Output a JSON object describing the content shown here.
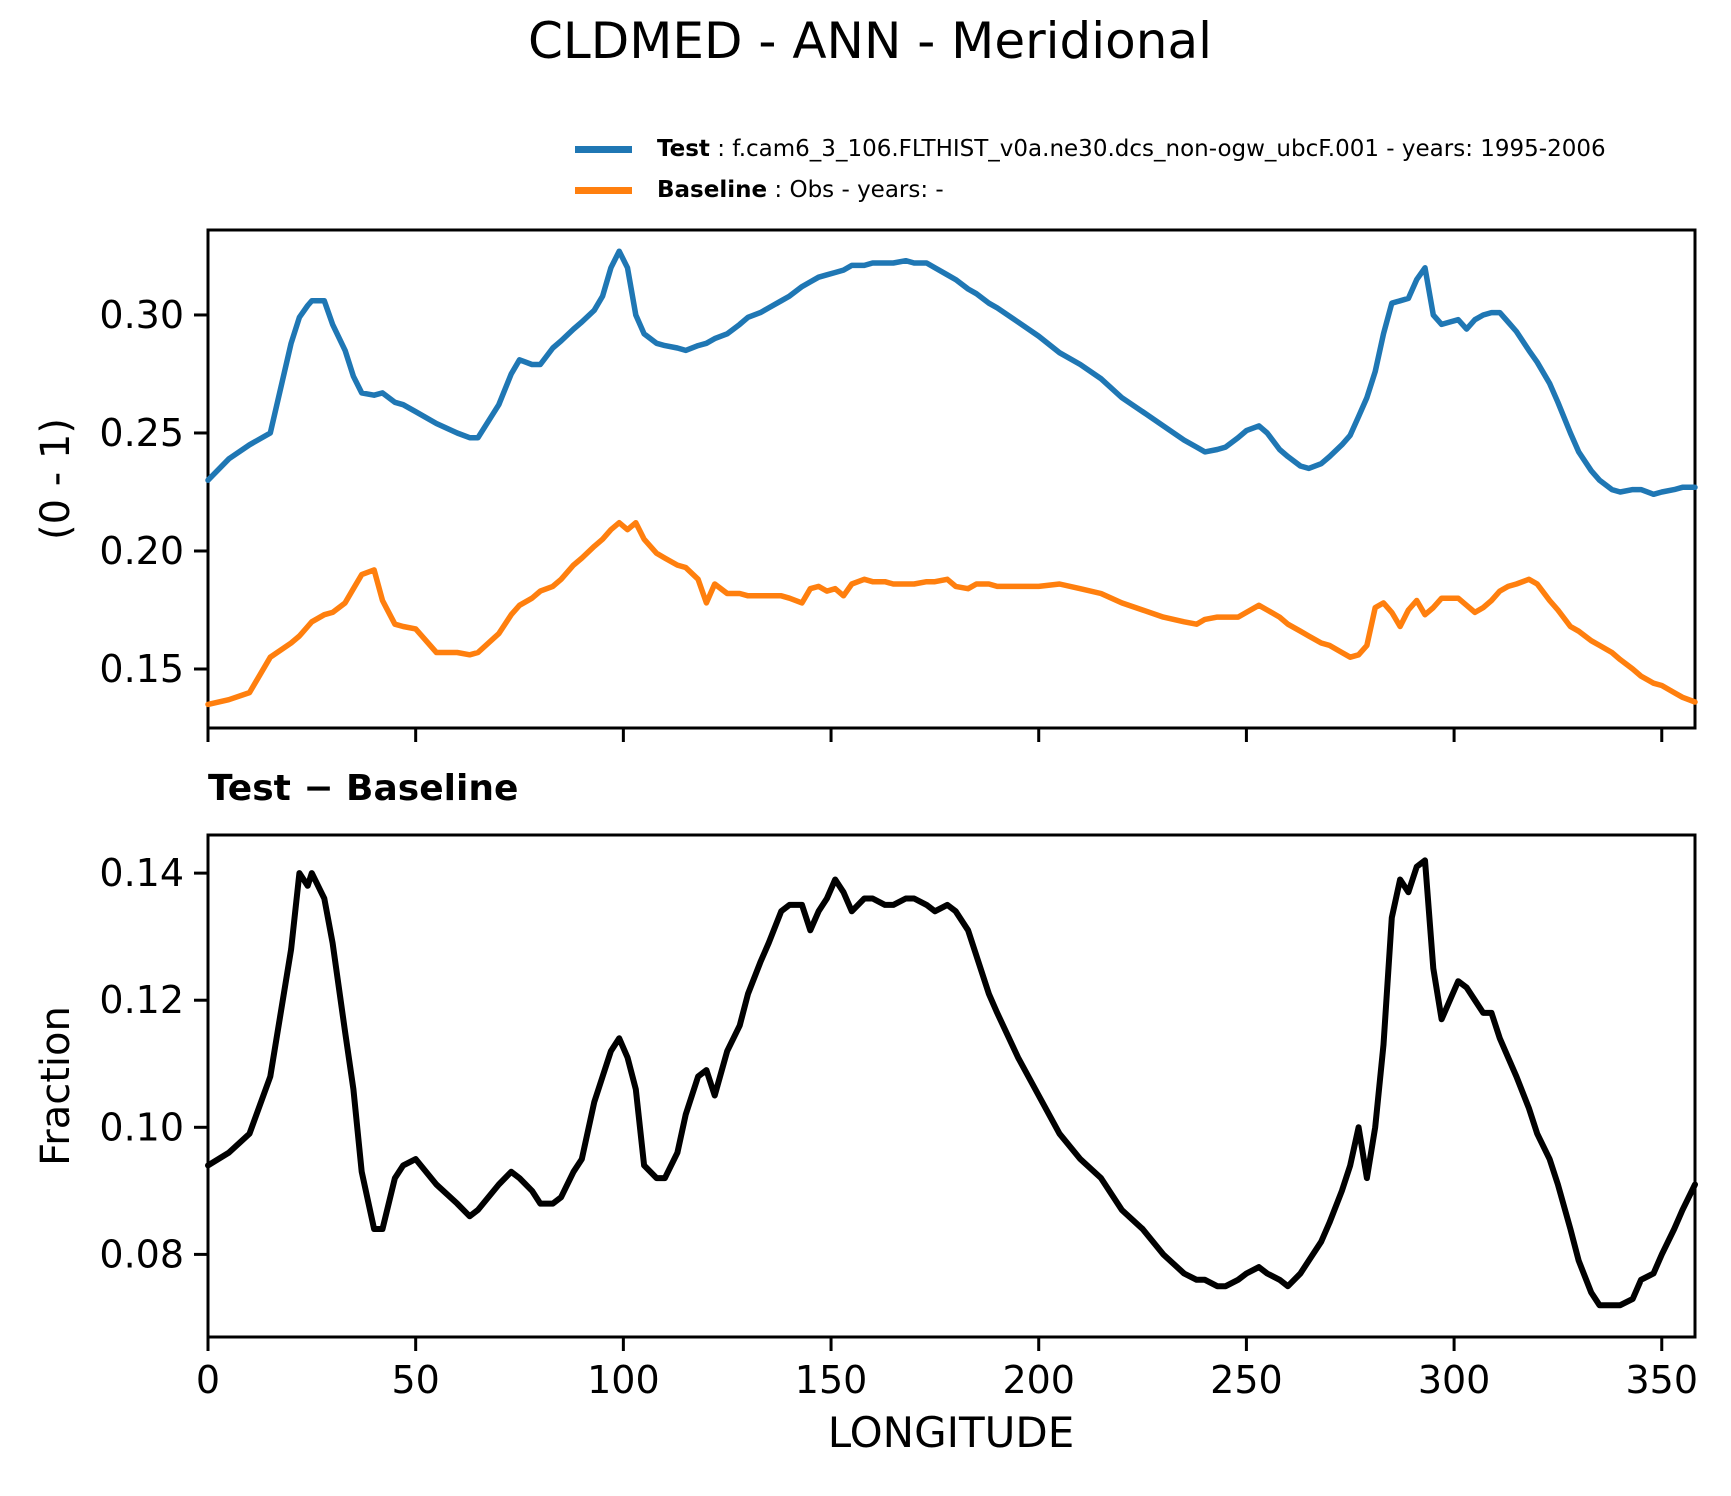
{
  "title": "CLDMED - ANN - Meridional",
  "legend": {
    "entries": [
      {
        "name": "Test",
        "rest": " : f.cam6_3_106.FLTHIST_v0a.ne30.dcs_non-ogw_ubcF.001 - years: 1995-2006",
        "color": "#1f77b4"
      },
      {
        "name": "Baseline",
        "rest": " : Obs - years: -",
        "color": "#ff7f0e"
      }
    ]
  },
  "chart_data": [
    {
      "type": "line",
      "panel": "top",
      "title": "",
      "ylabel": "(0 - 1)",
      "xlabel": "",
      "grid": false,
      "legend_position": "top",
      "xlim": [
        0,
        358
      ],
      "ylim": [
        0.125,
        0.336
      ],
      "ytick_values": [
        0.3,
        0.25,
        0.2,
        0.15
      ],
      "ytick_labels": [
        "0.30",
        "0.25",
        "0.20",
        "0.15"
      ],
      "xtick_values": [
        0,
        50,
        100,
        150,
        200,
        250,
        300,
        350
      ],
      "xtick_labels": null,
      "x": [
        0,
        5,
        10,
        15,
        20,
        22,
        24,
        25,
        28,
        30,
        33,
        35,
        37,
        40,
        42,
        45,
        47,
        50,
        55,
        60,
        63,
        65,
        70,
        73,
        75,
        78,
        80,
        83,
        85,
        88,
        90,
        93,
        95,
        97,
        99,
        101,
        103,
        105,
        108,
        110,
        113,
        115,
        118,
        120,
        122,
        125,
        128,
        130,
        133,
        135,
        138,
        140,
        143,
        145,
        147,
        149,
        151,
        153,
        155,
        158,
        160,
        163,
        165,
        168,
        170,
        173,
        175,
        178,
        180,
        183,
        185,
        188,
        190,
        195,
        200,
        205,
        210,
        215,
        220,
        225,
        230,
        235,
        238,
        240,
        243,
        245,
        248,
        250,
        253,
        255,
        258,
        260,
        263,
        265,
        268,
        270,
        273,
        275,
        277,
        279,
        281,
        283,
        285,
        287,
        289,
        291,
        293,
        295,
        297,
        299,
        301,
        303,
        305,
        307,
        309,
        311,
        313,
        315,
        318,
        320,
        323,
        325,
        328,
        330,
        333,
        335,
        338,
        340,
        343,
        345,
        348,
        350,
        353,
        355,
        358
      ],
      "series": [
        {
          "name": "Test",
          "color": "#1f77b4",
          "values": [
            0.23,
            0.239,
            0.245,
            0.25,
            0.288,
            0.299,
            0.304,
            0.306,
            0.306,
            0.296,
            0.285,
            0.274,
            0.267,
            0.266,
            0.267,
            0.263,
            0.262,
            0.259,
            0.254,
            0.25,
            0.248,
            0.248,
            0.262,
            0.275,
            0.281,
            0.279,
            0.279,
            0.286,
            0.289,
            0.294,
            0.297,
            0.302,
            0.308,
            0.32,
            0.327,
            0.32,
            0.3,
            0.292,
            0.288,
            0.287,
            0.286,
            0.285,
            0.287,
            0.288,
            0.29,
            0.292,
            0.296,
            0.299,
            0.301,
            0.303,
            0.306,
            0.308,
            0.312,
            0.314,
            0.316,
            0.317,
            0.318,
            0.319,
            0.321,
            0.321,
            0.322,
            0.322,
            0.322,
            0.323,
            0.322,
            0.322,
            0.32,
            0.317,
            0.315,
            0.311,
            0.309,
            0.305,
            0.303,
            0.297,
            0.291,
            0.284,
            0.279,
            0.273,
            0.265,
            0.259,
            0.253,
            0.247,
            0.244,
            0.242,
            0.243,
            0.244,
            0.248,
            0.251,
            0.253,
            0.25,
            0.243,
            0.24,
            0.236,
            0.235,
            0.237,
            0.24,
            0.245,
            0.249,
            0.257,
            0.265,
            0.276,
            0.292,
            0.305,
            0.306,
            0.307,
            0.315,
            0.32,
            0.3,
            0.296,
            0.297,
            0.298,
            0.294,
            0.298,
            0.3,
            0.301,
            0.301,
            0.297,
            0.293,
            0.285,
            0.28,
            0.271,
            0.263,
            0.25,
            0.242,
            0.234,
            0.23,
            0.226,
            0.225,
            0.226,
            0.226,
            0.224,
            0.225,
            0.226,
            0.227,
            0.227
          ]
        },
        {
          "name": "Baseline",
          "color": "#ff7f0e",
          "values": [
            0.135,
            0.137,
            0.14,
            0.155,
            0.161,
            0.164,
            0.168,
            0.17,
            0.173,
            0.174,
            0.178,
            0.184,
            0.19,
            0.192,
            0.179,
            0.169,
            0.168,
            0.167,
            0.157,
            0.157,
            0.156,
            0.157,
            0.165,
            0.173,
            0.177,
            0.18,
            0.183,
            0.185,
            0.188,
            0.194,
            0.197,
            0.202,
            0.205,
            0.209,
            0.212,
            0.209,
            0.212,
            0.205,
            0.199,
            0.197,
            0.194,
            0.193,
            0.188,
            0.178,
            0.186,
            0.182,
            0.182,
            0.181,
            0.181,
            0.181,
            0.181,
            0.18,
            0.178,
            0.184,
            0.185,
            0.183,
            0.184,
            0.181,
            0.186,
            0.188,
            0.187,
            0.187,
            0.186,
            0.186,
            0.186,
            0.187,
            0.187,
            0.188,
            0.185,
            0.184,
            0.186,
            0.186,
            0.185,
            0.185,
            0.185,
            0.186,
            0.184,
            0.182,
            0.178,
            0.175,
            0.172,
            0.17,
            0.169,
            0.171,
            0.172,
            0.172,
            0.172,
            0.174,
            0.177,
            0.175,
            0.172,
            0.169,
            0.166,
            0.164,
            0.161,
            0.16,
            0.157,
            0.155,
            0.156,
            0.16,
            0.176,
            0.178,
            0.174,
            0.168,
            0.175,
            0.179,
            0.173,
            0.176,
            0.18,
            0.18,
            0.18,
            0.177,
            0.174,
            0.176,
            0.179,
            0.183,
            0.185,
            0.186,
            0.188,
            0.186,
            0.179,
            0.175,
            0.168,
            0.166,
            0.162,
            0.16,
            0.157,
            0.154,
            0.15,
            0.147,
            0.144,
            0.143,
            0.14,
            0.138,
            0.136
          ]
        }
      ]
    },
    {
      "type": "line",
      "panel": "bottom",
      "title": "Test − Baseline",
      "ylabel": "Fraction",
      "xlabel": "LONGITUDE",
      "grid": false,
      "xlim": [
        0,
        358
      ],
      "ylim": [
        0.067,
        0.146
      ],
      "ytick_values": [
        0.14,
        0.12,
        0.1,
        0.08
      ],
      "ytick_labels": [
        "0.14",
        "0.12",
        "0.10",
        "0.08"
      ],
      "xtick_values": [
        0,
        50,
        100,
        150,
        200,
        250,
        300,
        350
      ],
      "xtick_labels": [
        "0",
        "50",
        "100",
        "150",
        "200",
        "250",
        "300",
        "350"
      ],
      "x": [
        0,
        5,
        10,
        15,
        20,
        22,
        24,
        25,
        28,
        30,
        33,
        35,
        37,
        40,
        42,
        45,
        47,
        50,
        55,
        60,
        63,
        65,
        70,
        73,
        75,
        78,
        80,
        83,
        85,
        88,
        90,
        93,
        95,
        97,
        99,
        101,
        103,
        105,
        108,
        110,
        113,
        115,
        118,
        120,
        122,
        125,
        128,
        130,
        133,
        135,
        138,
        140,
        143,
        145,
        147,
        149,
        151,
        153,
        155,
        158,
        160,
        163,
        165,
        168,
        170,
        173,
        175,
        178,
        180,
        183,
        185,
        188,
        190,
        195,
        200,
        205,
        210,
        215,
        220,
        225,
        230,
        235,
        238,
        240,
        243,
        245,
        248,
        250,
        253,
        255,
        258,
        260,
        263,
        265,
        268,
        270,
        273,
        275,
        277,
        279,
        281,
        283,
        285,
        287,
        289,
        291,
        293,
        295,
        297,
        299,
        301,
        303,
        305,
        307,
        309,
        311,
        313,
        315,
        318,
        320,
        323,
        325,
        328,
        330,
        333,
        335,
        338,
        340,
        343,
        345,
        348,
        350,
        353,
        355,
        358
      ],
      "series": [
        {
          "name": "Test − Baseline",
          "color": "#000000",
          "values": [
            0.094,
            0.096,
            0.099,
            0.108,
            0.128,
            0.14,
            0.138,
            0.14,
            0.136,
            0.129,
            0.115,
            0.106,
            0.093,
            0.084,
            0.084,
            0.092,
            0.094,
            0.095,
            0.091,
            0.088,
            0.086,
            0.087,
            0.091,
            0.093,
            0.092,
            0.09,
            0.088,
            0.088,
            0.089,
            0.093,
            0.095,
            0.104,
            0.108,
            0.112,
            0.114,
            0.111,
            0.106,
            0.094,
            0.092,
            0.092,
            0.096,
            0.102,
            0.108,
            0.109,
            0.105,
            0.112,
            0.116,
            0.121,
            0.126,
            0.129,
            0.134,
            0.135,
            0.135,
            0.131,
            0.134,
            0.136,
            0.139,
            0.137,
            0.134,
            0.136,
            0.136,
            0.135,
            0.135,
            0.136,
            0.136,
            0.135,
            0.134,
            0.135,
            0.134,
            0.131,
            0.127,
            0.121,
            0.118,
            0.111,
            0.105,
            0.099,
            0.095,
            0.092,
            0.087,
            0.084,
            0.08,
            0.077,
            0.076,
            0.076,
            0.075,
            0.075,
            0.076,
            0.077,
            0.078,
            0.077,
            0.076,
            0.075,
            0.077,
            0.079,
            0.082,
            0.085,
            0.09,
            0.094,
            0.1,
            0.092,
            0.1,
            0.113,
            0.133,
            0.139,
            0.137,
            0.141,
            0.142,
            0.125,
            0.117,
            0.12,
            0.123,
            0.122,
            0.12,
            0.118,
            0.118,
            0.114,
            0.111,
            0.108,
            0.103,
            0.099,
            0.095,
            0.091,
            0.084,
            0.079,
            0.074,
            0.072,
            0.072,
            0.072,
            0.073,
            0.076,
            0.077,
            0.08,
            0.084,
            0.087,
            0.091
          ]
        }
      ]
    }
  ]
}
